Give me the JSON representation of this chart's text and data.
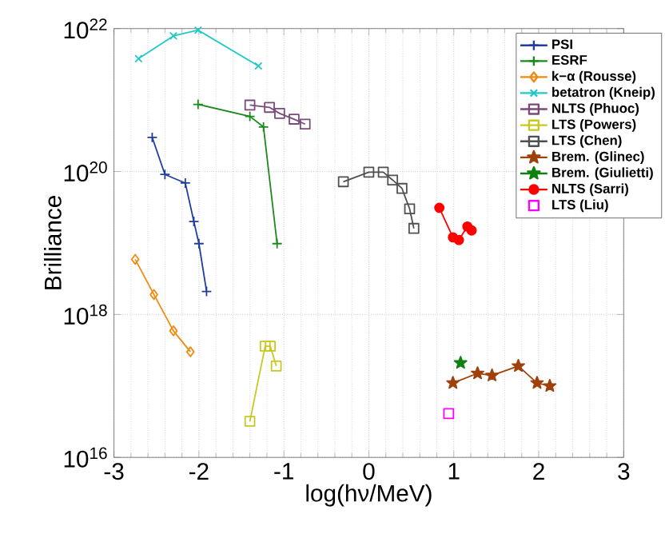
{
  "chart_data": {
    "type": "line",
    "xlabel": "log(hν/MeV)",
    "ylabel": "Brilliance",
    "log": "y",
    "grid": true,
    "legend": "top right",
    "xlim": [
      -3,
      3
    ],
    "xticks": [
      -3,
      -2,
      -1,
      0,
      1,
      2,
      3
    ],
    "ylim": [
      1e+16,
      1e+22
    ],
    "yticks": [
      {
        "value": 1e+16,
        "label": "10$^{16}$"
      },
      {
        "value": 1e+18,
        "label": "10$^{18}$"
      },
      {
        "value": 1e+20,
        "label": "10$^{20}$"
      },
      {
        "value": 1e+22,
        "label": "10$^{22}$"
      }
    ],
    "series": [
      {
        "name": "PSI",
        "color": "#1f3fa0",
        "marker": "plus",
        "x": [
          -2.55,
          -2.4,
          -2.16,
          -2.06,
          -2.0,
          -1.91
        ],
        "values": [
          3e+20,
          9.1e+19,
          6.9e+19,
          2e+19,
          9.8e+18,
          2.1e+18
        ]
      },
      {
        "name": "ESRF",
        "color": "#1a8a1a",
        "marker": "plus",
        "x": [
          -2.01,
          -1.4,
          -1.24,
          -1.08
        ],
        "values": [
          8.7e+20,
          5.9e+20,
          4.2e+20,
          9.8e+18
        ]
      },
      {
        "name": "k−α (Rousse)",
        "color": "#f08a10",
        "marker": "diamond",
        "x": [
          -2.75,
          -2.53,
          -2.3,
          -2.1
        ],
        "values": [
          5.9e+18,
          1.9e+18,
          5.9e+17,
          3e+17
        ]
      },
      {
        "name": "betatron (Kneip)",
        "color": "#20c8c8",
        "marker": "cross",
        "x": [
          -2.71,
          -2.3,
          -2.01,
          -1.3
        ],
        "values": [
          3.8e+21,
          7.9e+21,
          9.5e+21,
          3e+21
        ]
      },
      {
        "name": "NLTS (Phuoc)",
        "color": "#7a4a7a",
        "marker": "square",
        "x": [
          -1.4,
          -1.17,
          -1.05,
          -0.88,
          -0.75
        ],
        "values": [
          8.5e+20,
          7.9e+20,
          6.5e+20,
          5.4e+20,
          4.6e+20
        ]
      },
      {
        "name": "LTS (Powers)",
        "color": "#c8c820",
        "marker": "square",
        "x": [
          -1.4,
          -1.22,
          -1.16,
          -1.09
        ],
        "values": [
          3.2e+16,
          3.6e+17,
          3.6e+17,
          1.9e+17
        ]
      },
      {
        "name": "LTS (Chen)",
        "color": "#505050",
        "marker": "square",
        "x": [
          -0.3,
          0.0,
          0.17,
          0.28,
          0.39,
          0.48,
          0.53
        ],
        "values": [
          7.2e+19,
          9.8e+19,
          9.8e+19,
          7.6e+19,
          5.8e+19,
          3e+19,
          1.6e+19
        ]
      },
      {
        "name": "Brem. (Glinec)",
        "color": "#a0400a",
        "marker": "star",
        "x": [
          0.99,
          1.28,
          1.45,
          1.76,
          1.98,
          2.13
        ],
        "values": [
          1.1e+17,
          1.5e+17,
          1.4e+17,
          1.9e+17,
          1.1e+17,
          1e+17
        ]
      },
      {
        "name": "Brem. (Giulietti)",
        "color": "#108010",
        "marker": "star",
        "x": [
          1.08
        ],
        "values": [
          2.1e+17
        ]
      },
      {
        "name": "NLTS (Sarri)",
        "color": "#ff0000",
        "marker": "circle",
        "x": [
          0.83,
          0.99,
          1.06,
          1.16,
          1.21
        ],
        "values": [
          3.1e+19,
          1.2e+19,
          1.1e+19,
          1.7e+19,
          1.5e+19
        ]
      },
      {
        "name": "LTS (Liu)",
        "color": "#ff00ff",
        "marker": "square",
        "type": "scatter",
        "x": [
          0.94
        ],
        "values": [
          4.1e+16
        ]
      }
    ]
  }
}
